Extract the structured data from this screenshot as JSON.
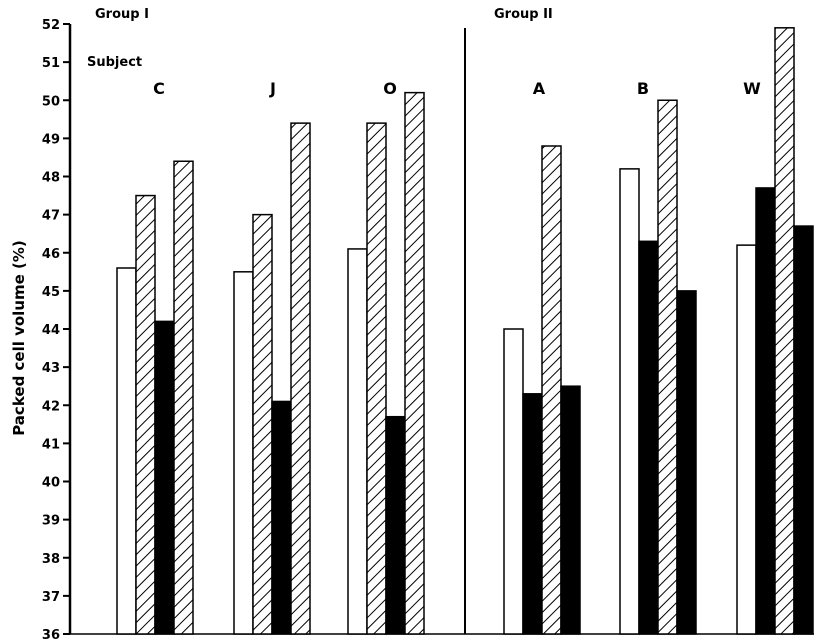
{
  "chart_data": {
    "type": "bar",
    "ylabel": "Packed cell volume (%)",
    "ylim": [
      36,
      52
    ],
    "yticks": [
      "36",
      "37",
      "38",
      "39",
      "40",
      "41",
      "42",
      "43",
      "44",
      "45",
      "46",
      "47",
      "48",
      "49",
      "50",
      "51",
      "52"
    ],
    "subject_heading": "Subject",
    "groups": [
      {
        "label": "Group I",
        "subjects": [
          {
            "label": "C",
            "bars": [
              {
                "value": 45.6,
                "fill": "white"
              },
              {
                "value": 47.5,
                "fill": "hatched"
              },
              {
                "value": 44.2,
                "fill": "black"
              },
              {
                "value": 48.4,
                "fill": "hatched"
              }
            ]
          },
          {
            "label": "J",
            "bars": [
              {
                "value": 45.5,
                "fill": "white"
              },
              {
                "value": 47.0,
                "fill": "hatched"
              },
              {
                "value": 42.1,
                "fill": "black"
              },
              {
                "value": 49.4,
                "fill": "hatched"
              }
            ]
          },
          {
            "label": "O",
            "bars": [
              {
                "value": 46.1,
                "fill": "white"
              },
              {
                "value": 49.4,
                "fill": "hatched"
              },
              {
                "value": 41.7,
                "fill": "black"
              },
              {
                "value": 50.2,
                "fill": "hatched"
              }
            ]
          }
        ]
      },
      {
        "label": "Group II",
        "subjects": [
          {
            "label": "A",
            "bars": [
              {
                "value": 44.0,
                "fill": "white"
              },
              {
                "value": 42.3,
                "fill": "black"
              },
              {
                "value": 48.8,
                "fill": "hatched"
              },
              {
                "value": 42.5,
                "fill": "black"
              }
            ]
          },
          {
            "label": "B",
            "bars": [
              {
                "value": 48.2,
                "fill": "white"
              },
              {
                "value": 46.3,
                "fill": "black"
              },
              {
                "value": 50.0,
                "fill": "hatched"
              },
              {
                "value": 45.0,
                "fill": "black"
              }
            ]
          },
          {
            "label": "W",
            "bars": [
              {
                "value": 46.2,
                "fill": "white"
              },
              {
                "value": 47.7,
                "fill": "black"
              },
              {
                "value": 51.9,
                "fill": "hatched"
              },
              {
                "value": 46.7,
                "fill": "black"
              }
            ]
          }
        ]
      }
    ],
    "colors": {
      "bar_stroke": "#000000",
      "solid_fill": "#000000",
      "hatch": "#000000",
      "background": "#ffffff"
    }
  }
}
